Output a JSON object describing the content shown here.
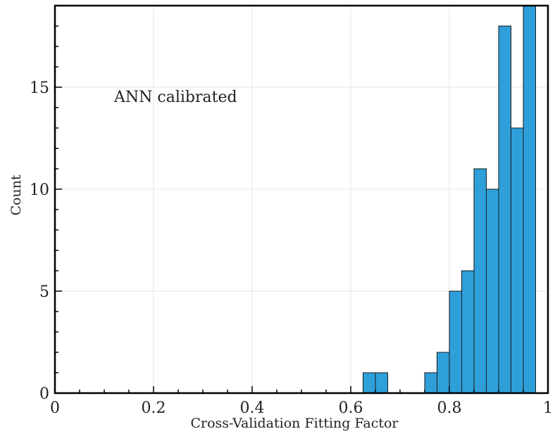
{
  "chart_data": {
    "type": "bar",
    "subtype": "histogram",
    "annotation": "ANN calibrated",
    "xlabel": "Cross-Validation Fitting Factor",
    "ylabel": "Count",
    "xlim": [
      0,
      1
    ],
    "ylim": [
      0,
      19
    ],
    "x_ticks": [
      0,
      0.2,
      0.4,
      0.6,
      0.8,
      1
    ],
    "x_tick_labels": [
      "0",
      "0.2",
      "0.4",
      "0.6",
      "0.8",
      "1"
    ],
    "y_ticks": [
      0,
      5,
      10,
      15
    ],
    "y_tick_labels": [
      "0",
      "5",
      "10",
      "15"
    ],
    "grid": true,
    "bin_width": 0.025,
    "bins": [
      {
        "x0": 0.625,
        "x1": 0.65,
        "count": 1
      },
      {
        "x0": 0.65,
        "x1": 0.675,
        "count": 1
      },
      {
        "x0": 0.75,
        "x1": 0.775,
        "count": 1
      },
      {
        "x0": 0.775,
        "x1": 0.8,
        "count": 2
      },
      {
        "x0": 0.8,
        "x1": 0.825,
        "count": 5
      },
      {
        "x0": 0.825,
        "x1": 0.85,
        "count": 6
      },
      {
        "x0": 0.85,
        "x1": 0.875,
        "count": 11
      },
      {
        "x0": 0.875,
        "x1": 0.9,
        "count": 10
      },
      {
        "x0": 0.9,
        "x1": 0.925,
        "count": 18
      },
      {
        "x0": 0.925,
        "x1": 0.95,
        "count": 13
      },
      {
        "x0": 0.95,
        "x1": 0.975,
        "count": 19
      }
    ],
    "colors": {
      "bar": "#2e9fd9",
      "edge": "#1a1a1a",
      "grid": "#e6e6e6",
      "axis": "#000000"
    }
  }
}
